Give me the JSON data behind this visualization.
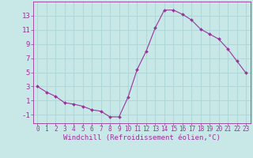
{
  "x": [
    0,
    1,
    2,
    3,
    4,
    5,
    6,
    7,
    8,
    9,
    10,
    11,
    12,
    13,
    14,
    15,
    16,
    17,
    18,
    19,
    20,
    21,
    22,
    23
  ],
  "y": [
    3,
    2.2,
    1.6,
    0.7,
    0.5,
    0.2,
    -0.3,
    -0.5,
    -1.3,
    -1.3,
    1.5,
    5.4,
    8.0,
    11.3,
    13.8,
    13.8,
    13.2,
    12.4,
    11.1,
    10.4,
    9.7,
    8.3,
    6.6,
    4.9
  ],
  "line_color": "#993399",
  "marker": "D",
  "marker_size": 2.0,
  "background_color": "#c8e8e8",
  "grid_color": "#b0d8d8",
  "title": "",
  "xlabel": "Windchill (Refroidissement éolien,°C)",
  "ylabel": "",
  "xlim": [
    -0.5,
    23.5
  ],
  "ylim": [
    -2.2,
    15.0
  ],
  "xticks": [
    0,
    1,
    2,
    3,
    4,
    5,
    6,
    7,
    8,
    9,
    10,
    11,
    12,
    13,
    14,
    15,
    16,
    17,
    18,
    19,
    20,
    21,
    22,
    23
  ],
  "yticks": [
    -1,
    1,
    3,
    5,
    7,
    9,
    11,
    13
  ],
  "tick_color": "#993399",
  "label_color": "#993399",
  "axis_color": "#993399",
  "xlabel_fontsize": 6.5,
  "ytick_fontsize": 6.5,
  "xtick_fontsize": 5.5
}
